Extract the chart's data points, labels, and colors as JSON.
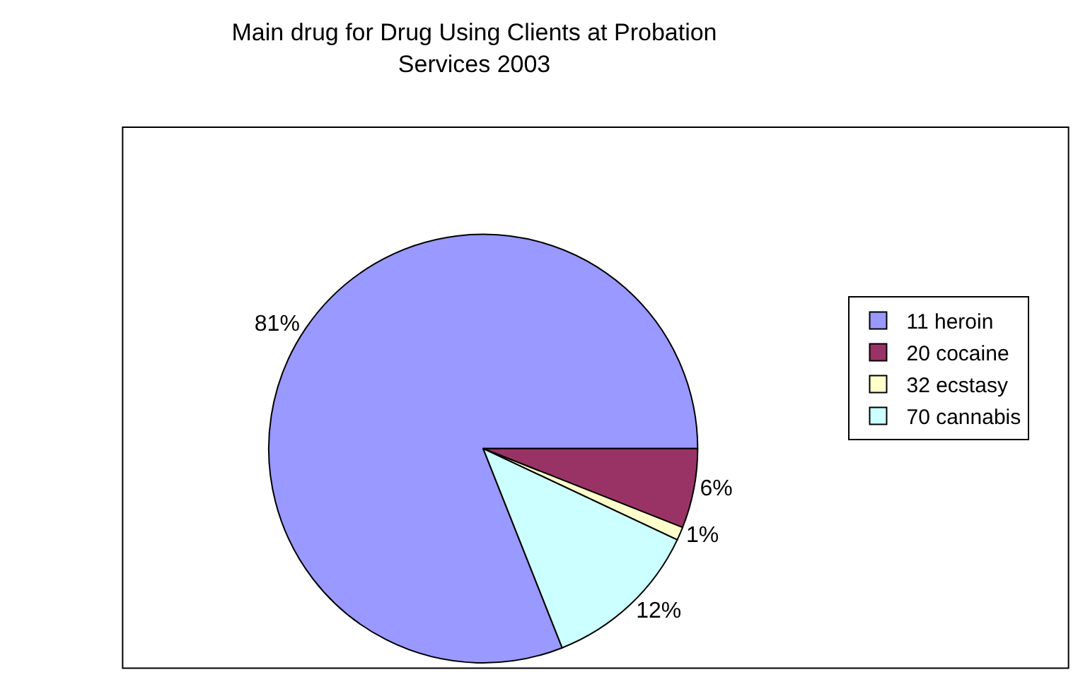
{
  "chart_data": {
    "type": "pie",
    "title": "Main drug for Drug Using Clients at Probation Services 2003",
    "categories": [
      "11 heroin",
      "20 cocaine",
      "32 ecstasy",
      "70 cannabis"
    ],
    "values": [
      81,
      6,
      1,
      12
    ],
    "colors": [
      "#9999ff",
      "#993366",
      "#ffffcc",
      "#ccffff"
    ],
    "value_labels": [
      "81%",
      "6%",
      "1%",
      "12%"
    ],
    "legend": "right"
  }
}
